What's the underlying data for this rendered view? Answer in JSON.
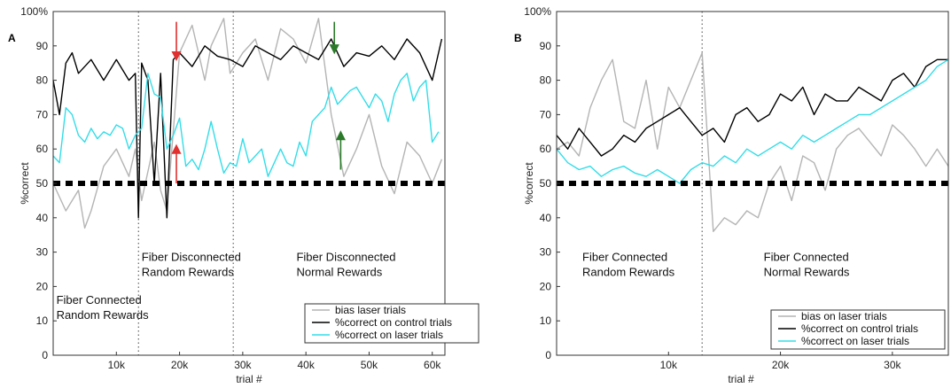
{
  "chart_data": [
    {
      "type": "line",
      "panel_label": "A",
      "xlabel": "trial #",
      "ylabel": "%correct",
      "xlim": [
        0,
        62000
      ],
      "ylim": [
        0,
        100
      ],
      "x_ticks": [
        "10k",
        "20k",
        "30k",
        "40k",
        "50k",
        "60k"
      ],
      "x_tick_values": [
        10000,
        20000,
        30000,
        40000,
        50000,
        60000
      ],
      "y_ticks": [
        "0",
        "10",
        "20",
        "30",
        "40",
        "50",
        "60",
        "70",
        "80",
        "90",
        "100%"
      ],
      "chance_level": 50,
      "phase_boundaries": [
        13500,
        28500
      ],
      "annotations": [
        {
          "lines": [
            "Fiber Connected",
            "Random Rewards"
          ],
          "x": 500,
          "y": 15
        },
        {
          "lines": [
            "Fiber Disconnected",
            "Random Rewards"
          ],
          "x": 14000,
          "y": 27.5
        },
        {
          "lines": [
            "Fiber Disconnected",
            "Normal Rewards"
          ],
          "x": 38500,
          "y": 27.5
        }
      ],
      "arrows": [
        {
          "color": "#e03030",
          "direction": "down",
          "x": 19500,
          "y_from": 97,
          "y_to": 87
        },
        {
          "color": "#e03030",
          "direction": "up",
          "x": 19500,
          "y_from": 50,
          "y_to": 60
        },
        {
          "color": "#2a7a2a",
          "direction": "down",
          "x": 44500,
          "y_from": 97,
          "y_to": 89
        },
        {
          "color": "#2a7a2a",
          "direction": "up",
          "x": 45500,
          "y_from": 54,
          "y_to": 64
        }
      ],
      "legend": {
        "entries": [
          "bias laser trials",
          "%correct on control trials",
          "%correct on laser trials"
        ],
        "placement": "bottom-right"
      },
      "series": [
        {
          "name": "bias laser trials",
          "color": "#b4b4b4",
          "x": [
            0,
            2000,
            4000,
            5000,
            6000,
            8000,
            10000,
            12000,
            13000,
            14000,
            16000,
            17000,
            18000,
            20000,
            22000,
            24000,
            25000,
            27000,
            28000,
            30000,
            32000,
            34000,
            36000,
            38000,
            40000,
            42000,
            44000,
            46000,
            48000,
            50000,
            52000,
            54000,
            56000,
            58000,
            60000,
            61500
          ],
          "values": [
            50,
            42,
            48,
            37,
            42,
            55,
            60,
            52,
            60,
            45,
            62,
            48,
            42,
            88,
            96,
            80,
            90,
            98,
            82,
            88,
            92,
            80,
            95,
            92,
            85,
            98,
            70,
            52,
            60,
            70,
            55,
            47,
            62,
            58,
            50,
            57
          ]
        },
        {
          "name": "%correct on control trials",
          "color": "#000000",
          "x": [
            0,
            1000,
            2000,
            3000,
            4000,
            6000,
            8000,
            10000,
            12000,
            13000,
            13500,
            14000,
            15000,
            16000,
            17000,
            18000,
            19000,
            20000,
            22000,
            24000,
            26000,
            28000,
            30000,
            32000,
            34000,
            36000,
            38000,
            40000,
            42000,
            44000,
            46000,
            48000,
            50000,
            52000,
            54000,
            56000,
            58000,
            60000,
            61500
          ],
          "values": [
            80,
            70,
            85,
            88,
            82,
            86,
            80,
            86,
            80,
            82,
            40,
            85,
            80,
            50,
            82,
            40,
            86,
            88,
            84,
            90,
            87,
            86,
            84,
            90,
            88,
            86,
            90,
            88,
            86,
            92,
            84,
            88,
            87,
            90,
            86,
            92,
            88,
            80,
            92
          ]
        },
        {
          "name": "%correct on laser trials",
          "color": "#33dde8",
          "x": [
            0,
            1000,
            2000,
            3000,
            4000,
            5000,
            6000,
            7000,
            8000,
            9000,
            10000,
            11000,
            12000,
            13000,
            14000,
            15000,
            16000,
            17000,
            18000,
            19000,
            20000,
            21000,
            22000,
            23000,
            24000,
            25000,
            26000,
            27000,
            28000,
            29000,
            30000,
            31000,
            32000,
            33000,
            34000,
            35000,
            36000,
            37000,
            38000,
            39000,
            40000,
            41000,
            42000,
            43000,
            44000,
            45000,
            46000,
            47000,
            48000,
            49000,
            50000,
            51000,
            52000,
            53000,
            54000,
            55000,
            56000,
            57000,
            58000,
            59000,
            60000,
            61000
          ],
          "values": [
            58,
            56,
            72,
            70,
            64,
            62,
            66,
            63,
            65,
            64,
            67,
            66,
            60,
            64,
            66,
            82,
            76,
            75,
            60,
            64,
            69,
            55,
            57,
            54,
            60,
            68,
            60,
            53,
            56,
            55,
            63,
            56,
            58,
            60,
            52,
            56,
            60,
            56,
            55,
            62,
            58,
            68,
            70,
            72,
            78,
            73,
            75,
            77,
            78,
            75,
            72,
            76,
            74,
            68,
            76,
            80,
            82,
            74,
            78,
            80,
            62,
            65
          ]
        }
      ]
    },
    {
      "type": "line",
      "panel_label": "B",
      "xlabel": "trial #",
      "ylabel": "%correct",
      "xlim": [
        0,
        35000
      ],
      "ylim": [
        0,
        100
      ],
      "x_ticks": [
        "10k",
        "20k",
        "30k"
      ],
      "x_tick_values": [
        10000,
        20000,
        30000
      ],
      "y_ticks": [
        "0",
        "10",
        "20",
        "30",
        "40",
        "50",
        "60",
        "70",
        "80",
        "90",
        "100%"
      ],
      "chance_level": 50,
      "phase_boundaries": [
        13000
      ],
      "annotations": [
        {
          "lines": [
            "Fiber Connected",
            "Random Rewards"
          ],
          "x": 2300,
          "y": 27.5
        },
        {
          "lines": [
            "Fiber Connected",
            "Normal Rewards"
          ],
          "x": 18500,
          "y": 27.5
        }
      ],
      "arrows": [],
      "legend": {
        "entries": [
          "bias on laser trials",
          "%correct on control trials",
          "%correct on laser trials"
        ],
        "placement": "bottom-right"
      },
      "series": [
        {
          "name": "bias on laser trials",
          "color": "#b4b4b4",
          "x": [
            0,
            1000,
            2000,
            3000,
            4000,
            5000,
            6000,
            7000,
            8000,
            9000,
            10000,
            11000,
            12000,
            13000,
            14000,
            15000,
            16000,
            17000,
            18000,
            19000,
            20000,
            21000,
            22000,
            23000,
            24000,
            25000,
            26000,
            27000,
            28000,
            29000,
            30000,
            31000,
            32000,
            33000,
            34000,
            35000
          ],
          "values": [
            60,
            62,
            58,
            72,
            80,
            86,
            68,
            66,
            80,
            60,
            78,
            72,
            80,
            88,
            36,
            40,
            38,
            42,
            40,
            50,
            55,
            45,
            58,
            56,
            48,
            60,
            64,
            66,
            62,
            58,
            67,
            64,
            60,
            55,
            60,
            55
          ]
        },
        {
          "name": "%correct on control trials",
          "color": "#000000",
          "x": [
            0,
            1000,
            2000,
            3000,
            4000,
            5000,
            6000,
            7000,
            8000,
            9000,
            10000,
            11000,
            12000,
            13000,
            14000,
            15000,
            16000,
            17000,
            18000,
            19000,
            20000,
            21000,
            22000,
            23000,
            24000,
            25000,
            26000,
            27000,
            28000,
            29000,
            30000,
            31000,
            32000,
            33000,
            34000,
            35000
          ],
          "values": [
            64,
            60,
            66,
            62,
            58,
            60,
            64,
            62,
            66,
            68,
            70,
            72,
            68,
            64,
            66,
            62,
            70,
            72,
            68,
            70,
            76,
            74,
            78,
            70,
            76,
            74,
            74,
            78,
            76,
            74,
            80,
            82,
            78,
            84,
            86,
            86
          ]
        },
        {
          "name": "%correct on laser trials",
          "color": "#33dde8",
          "x": [
            0,
            1000,
            2000,
            3000,
            4000,
            5000,
            6000,
            7000,
            8000,
            9000,
            10000,
            11000,
            12000,
            13000,
            14000,
            15000,
            16000,
            17000,
            18000,
            19000,
            20000,
            21000,
            22000,
            23000,
            24000,
            25000,
            26000,
            27000,
            28000,
            29000,
            30000,
            31000,
            32000,
            33000,
            34000,
            35000
          ],
          "values": [
            60,
            56,
            54,
            55,
            52,
            54,
            55,
            53,
            52,
            54,
            52,
            50,
            54,
            56,
            55,
            58,
            56,
            60,
            58,
            60,
            62,
            60,
            64,
            62,
            64,
            66,
            68,
            70,
            70,
            72,
            74,
            76,
            78,
            80,
            84,
            86
          ]
        }
      ]
    }
  ]
}
